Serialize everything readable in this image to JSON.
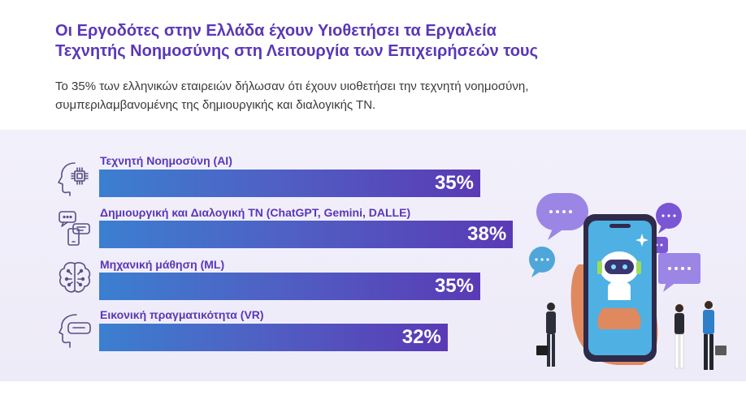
{
  "header": {
    "title_line1": "Οι Εργοδότες στην Ελλάδα έχουν Υιοθετήσει τα Εργαλεία",
    "title_line2": "Τεχνητής Νοημοσύνης στη Λειτουργία των Επιχειρήσεών τους",
    "subtitle_line1": "Το 35% των ελληνικών εταιρειών δήλωσαν ότι έχουν υιοθετήσει την τεχνητή νοημοσύνη,",
    "subtitle_line2": "συμπεριλαμβανομένης της δημιουργικής και διαλογικής ΤΝ."
  },
  "chart_data": {
    "type": "bar",
    "orientation": "horizontal",
    "categories": [
      "Τεχνητή Νοημοσύνη (AI)",
      "Δημιουργική και Διαλογική ΤΝ (ChatGPT, Gemini, DALLE)",
      "Μηχανική μάθηση (ML)",
      "Εικονική πραγματικότητα (VR)"
    ],
    "values": [
      35,
      38,
      35,
      32
    ],
    "value_labels": [
      "35%",
      "38%",
      "35%",
      "32%"
    ],
    "icons": [
      "ai-head-chip-icon",
      "chat-phone-icon",
      "brain-circuit-icon",
      "vr-headset-icon"
    ],
    "colors": {
      "bar_start": "#3b7fd0",
      "bar_end": "#5a3ab5",
      "label": "#5a37b8"
    }
  }
}
